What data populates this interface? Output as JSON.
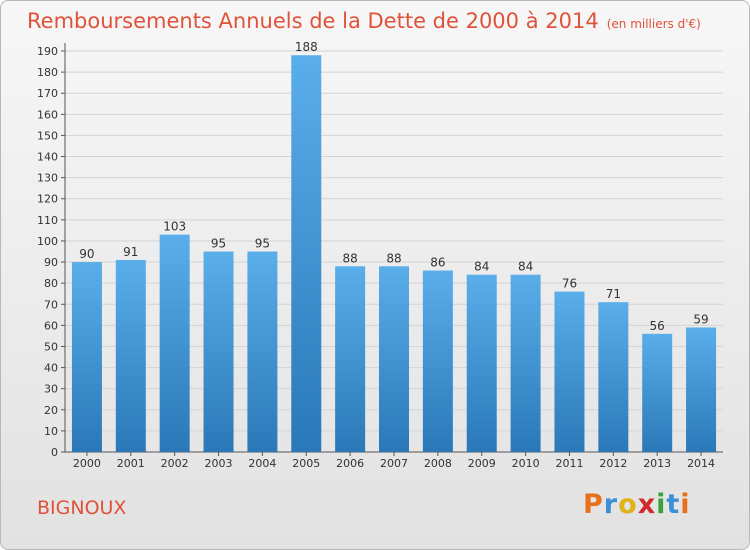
{
  "header": {
    "title": "Remboursements Annuels de la Dette de 2000 à 2014",
    "unit": "(en milliers d'€)"
  },
  "commune": "BIGNOUX",
  "logo": {
    "text": "Proxiti",
    "letters": [
      {
        "ch": "P",
        "color": "#e8701a"
      },
      {
        "ch": "r",
        "color": "#3b8fd6"
      },
      {
        "ch": "o",
        "color": "#e0b21a"
      },
      {
        "ch": "x",
        "color": "#d12a2a"
      },
      {
        "ch": "i",
        "color": "#3ba23b"
      },
      {
        "ch": "t",
        "color": "#3b8fd6"
      },
      {
        "ch": "i",
        "color": "#e8701a"
      }
    ]
  },
  "colors": {
    "bar_top": "#5aaeea",
    "bar_bottom": "#2a78b8",
    "title": "#e0523a"
  },
  "chart_data": {
    "type": "bar",
    "title": "Remboursements Annuels de la Dette de 2000 à 2014",
    "xlabel": "",
    "ylabel": "",
    "ylim": [
      0,
      190
    ],
    "yticks": [
      0,
      10,
      20,
      30,
      40,
      50,
      60,
      70,
      80,
      90,
      100,
      110,
      120,
      130,
      140,
      150,
      160,
      170,
      180,
      190
    ],
    "grid": true,
    "categories": [
      "2000",
      "2001",
      "2002",
      "2003",
      "2004",
      "2005",
      "2006",
      "2007",
      "2008",
      "2009",
      "2010",
      "2011",
      "2012",
      "2013",
      "2014"
    ],
    "values": [
      90,
      91,
      103,
      95,
      95,
      188,
      88,
      88,
      86,
      84,
      84,
      76,
      71,
      56,
      59
    ]
  }
}
